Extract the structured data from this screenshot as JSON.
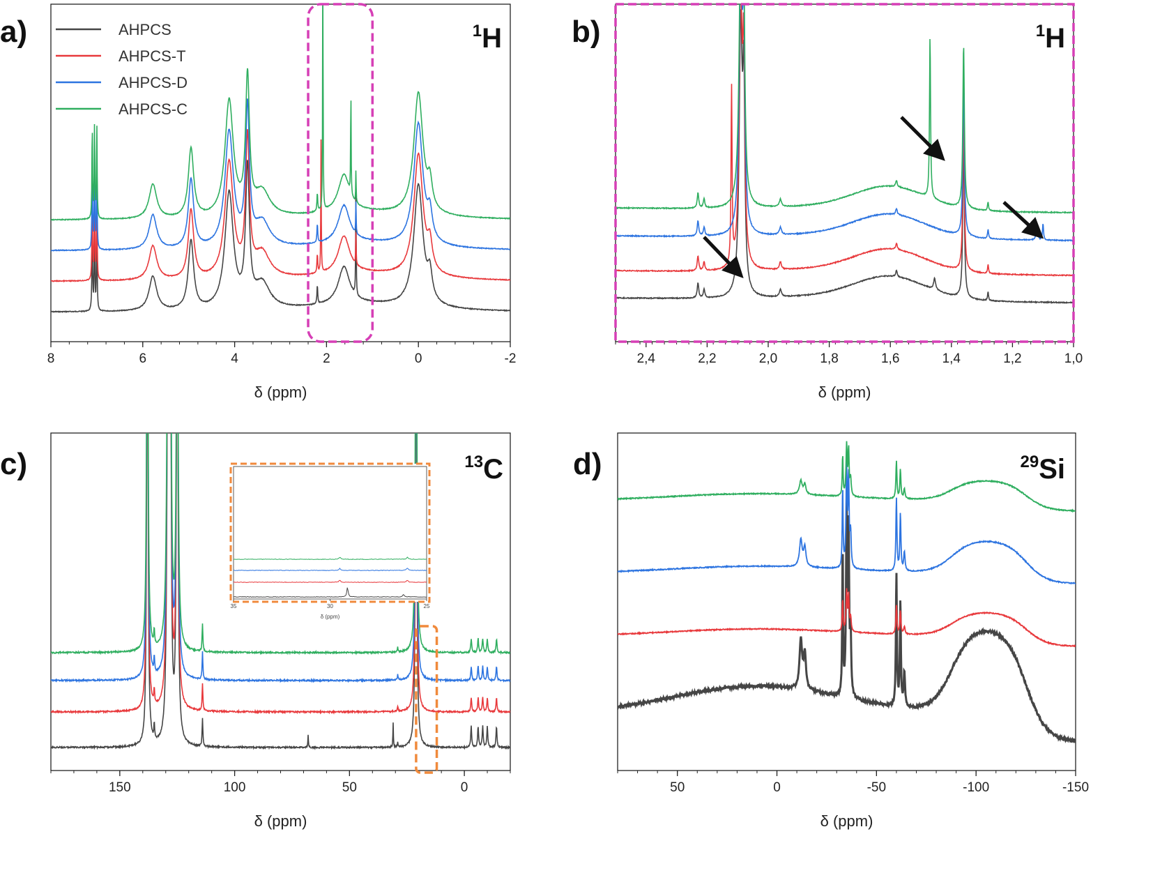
{
  "colors": {
    "AHPCS": "#454545",
    "AHPCS-T": "#e8393c",
    "AHPCS-D": "#2d74e0",
    "AHPCS-C": "#2fae5f",
    "zoom_box_a": "#d63fb6",
    "zoom_box_c": "#f08a3c",
    "arrow": "#111111"
  },
  "chart_data": [
    {
      "id": "a",
      "type": "line",
      "panel_label": "a)",
      "nucleus": {
        "mass": "1",
        "symbol": "H"
      },
      "xlabel": "δ (ppm)",
      "ylabel": "",
      "xlim": [
        8,
        -2
      ],
      "x_ticks": [
        8,
        6,
        4,
        2,
        0,
        -2
      ],
      "x_tick_labels": [
        "8",
        "6",
        "4",
        "2",
        "0",
        "-2"
      ],
      "legend": {
        "placement": "top-left",
        "entries": [
          "AHPCS",
          "AHPCS-T",
          "AHPCS-D",
          "AHPCS-C"
        ]
      },
      "zoom_region_ppm": [
        2.4,
        1.0
      ],
      "series": [
        {
          "name": "AHPCS",
          "peaks_ppm": [
            7.1,
            7.05,
            7.0,
            5.78,
            4.95,
            4.12,
            3.72,
            3.4,
            2.2,
            2.08,
            1.62,
            1.36,
            0.95,
            0.6,
            0.0,
            -0.25
          ]
        },
        {
          "name": "AHPCS-T",
          "peaks_ppm": [
            7.1,
            7.05,
            7.0,
            5.78,
            4.95,
            4.12,
            3.72,
            3.4,
            2.12,
            2.08,
            1.62,
            1.36,
            0.0,
            -0.25
          ]
        },
        {
          "name": "AHPCS-D",
          "peaks_ppm": [
            7.1,
            7.05,
            7.0,
            5.78,
            4.95,
            4.12,
            3.72,
            3.4,
            2.08,
            1.62,
            1.36,
            1.12,
            0.0,
            -0.25
          ]
        },
        {
          "name": "AHPCS-C",
          "peaks_ppm": [
            7.1,
            7.05,
            7.0,
            5.78,
            4.95,
            4.12,
            3.72,
            3.4,
            2.08,
            1.62,
            1.47,
            1.36,
            0.0,
            -0.25
          ]
        }
      ]
    },
    {
      "id": "b",
      "type": "line",
      "panel_label": "b)",
      "nucleus": {
        "mass": "1",
        "symbol": "H"
      },
      "xlabel": "δ (ppm)",
      "ylabel": "",
      "xlim": [
        2.5,
        1.0
      ],
      "x_ticks": [
        2.4,
        2.2,
        2.0,
        1.8,
        1.6,
        1.4,
        1.2,
        1.0
      ],
      "x_tick_labels": [
        "2,4",
        "2,2",
        "2,0",
        "1,8",
        "1,6",
        "1,4",
        "1,2",
        "1,0"
      ],
      "arrows_ppm": [
        2.12,
        1.47,
        1.12
      ],
      "series": [
        {
          "name": "AHPCS",
          "peaks_ppm": [
            2.23,
            2.21,
            2.1,
            2.08,
            1.96,
            1.58,
            1.46,
            1.45,
            1.36,
            1.28
          ]
        },
        {
          "name": "AHPCS-T",
          "peaks_ppm": [
            2.23,
            2.21,
            2.12,
            2.09,
            2.08,
            1.96,
            1.58,
            1.36,
            1.33,
            1.28
          ]
        },
        {
          "name": "AHPCS-D",
          "peaks_ppm": [
            2.23,
            2.21,
            2.1,
            2.09,
            2.08,
            1.96,
            1.58,
            1.36,
            1.33,
            1.28,
            1.12,
            1.1
          ]
        },
        {
          "name": "AHPCS-C",
          "peaks_ppm": [
            2.23,
            2.21,
            2.1,
            2.09,
            2.08,
            1.96,
            1.58,
            1.47,
            1.36,
            1.28
          ]
        }
      ]
    },
    {
      "id": "c",
      "type": "line",
      "panel_label": "c)",
      "nucleus": {
        "mass": "13",
        "symbol": "C"
      },
      "xlabel": "δ (ppm)",
      "ylabel": "",
      "xlim": [
        180,
        -20
      ],
      "x_ticks": [
        150,
        100,
        50,
        0
      ],
      "x_tick_labels": [
        "150",
        "100",
        "50",
        "0"
      ],
      "zoom_region_ppm": [
        21,
        12
      ],
      "series": [
        {
          "name": "AHPCS",
          "peaks_ppm": [
            138,
            135,
            129,
            128,
            125,
            114,
            68,
            31,
            29,
            21,
            -3,
            -6,
            -8,
            -10,
            -14
          ]
        },
        {
          "name": "AHPCS-T",
          "peaks_ppm": [
            138,
            135,
            129,
            128,
            125,
            114,
            29,
            21,
            -6,
            -8,
            -10
          ]
        },
        {
          "name": "AHPCS-D",
          "peaks_ppm": [
            138,
            135,
            129,
            128,
            125,
            114,
            29,
            21,
            -6,
            -8,
            -10
          ]
        },
        {
          "name": "AHPCS-C",
          "peaks_ppm": [
            138,
            135,
            129,
            128,
            125,
            114,
            29,
            21,
            -5,
            -7,
            -8,
            -10,
            -14
          ]
        }
      ],
      "inset": {
        "xlabel": "δ (ppm)",
        "xlim": [
          35,
          25
        ],
        "x_ticks": [
          35,
          30,
          25
        ],
        "x_tick_labels": [
          "35",
          "30",
          "25"
        ]
      }
    },
    {
      "id": "d",
      "type": "line",
      "panel_label": "d)",
      "nucleus": {
        "mass": "29",
        "symbol": "Si"
      },
      "xlabel": "δ (ppm)",
      "ylabel": "",
      "xlim": [
        80,
        -150
      ],
      "x_ticks": [
        50,
        0,
        -50,
        -100,
        -150
      ],
      "x_tick_labels": [
        "50",
        "0",
        "-50",
        "-100",
        "-150"
      ],
      "series": [
        {
          "name": "AHPCS",
          "peaks_ppm": [
            -12,
            -14,
            -33,
            -35,
            -36,
            -37,
            -60,
            -62,
            -64
          ],
          "broad_hump_ppm": -105
        },
        {
          "name": "AHPCS-T",
          "peaks_ppm": [
            -33,
            -35,
            -36,
            -60,
            -62
          ],
          "broad_hump_ppm": -108
        },
        {
          "name": "AHPCS-D",
          "peaks_ppm": [
            -12,
            -14,
            -33,
            -35,
            -36,
            -37,
            -60,
            -62
          ],
          "broad_hump_ppm": -108
        },
        {
          "name": "AHPCS-C",
          "peaks_ppm": [
            -12,
            -14,
            -33,
            -35,
            -36,
            -37,
            -60,
            -62
          ],
          "broad_hump_ppm": -105
        }
      ]
    }
  ]
}
